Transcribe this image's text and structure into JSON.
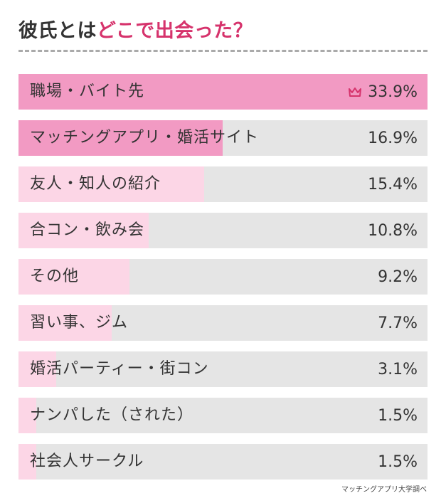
{
  "title": {
    "prefix": "彼氏とは",
    "accent": "どこで出会った？"
  },
  "source": "マッチングアプリ大学調べ",
  "colors": {
    "accent": "#d6336c",
    "bar_top": "#f29ac3",
    "bar_high": "#f29ac3",
    "bar_low": "#fcd6e6",
    "track": "#e5e5e5"
  },
  "chart_data": {
    "type": "bar",
    "orientation": "horizontal",
    "title": "彼氏とはどこで出会った？",
    "xlim": [
      0,
      33.9
    ],
    "categories": [
      "職場・バイト先",
      "マッチングアプリ・婚活サイト",
      "友人・知人の紹介",
      "合コン・飲み会",
      "その他",
      "習い事、ジム",
      "婚活パーティー・街コン",
      "ナンパした（された）",
      "社会人サークル"
    ],
    "values": [
      33.9,
      16.9,
      15.4,
      10.8,
      9.2,
      7.7,
      3.1,
      1.5,
      1.5
    ],
    "value_labels": [
      "33.9%",
      "16.9%",
      "15.4%",
      "10.8%",
      "9.2%",
      "7.7%",
      "3.1%",
      "1.5%",
      "1.5%"
    ],
    "top_marker": "crown-icon"
  }
}
